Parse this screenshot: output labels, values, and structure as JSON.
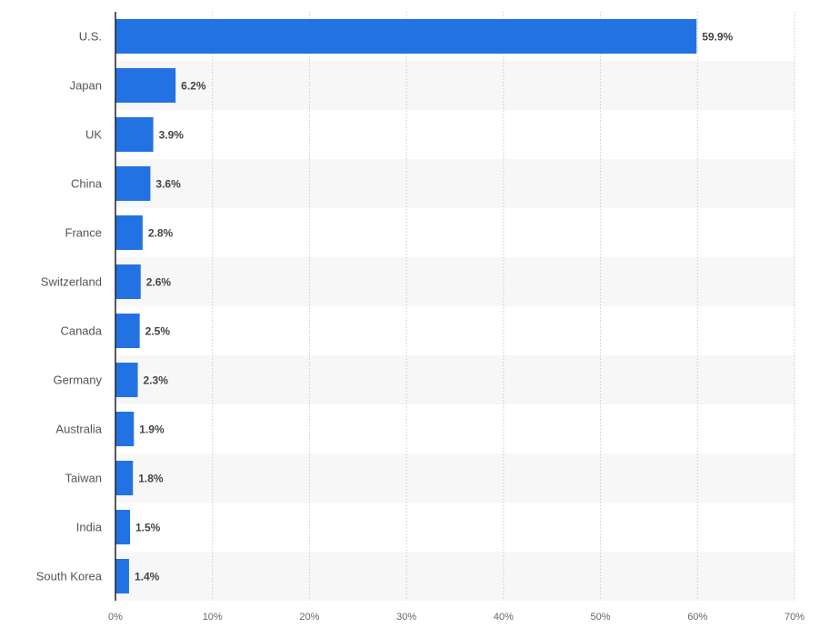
{
  "chart_data": {
    "type": "bar",
    "orientation": "horizontal",
    "categories": [
      "U.S.",
      "Japan",
      "UK",
      "China",
      "France",
      "Switzerland",
      "Canada",
      "Germany",
      "Australia",
      "Taiwan",
      "India",
      "South Korea"
    ],
    "values": [
      59.9,
      6.2,
      3.9,
      3.6,
      2.8,
      2.6,
      2.5,
      2.3,
      1.9,
      1.8,
      1.5,
      1.4
    ],
    "value_labels": [
      "59.9%",
      "6.2%",
      "3.9%",
      "3.6%",
      "2.8%",
      "2.6%",
      "2.5%",
      "2.3%",
      "1.9%",
      "1.8%",
      "1.5%",
      "1.4%"
    ],
    "x_ticks": [
      0,
      10,
      20,
      30,
      40,
      50,
      60,
      70
    ],
    "x_tick_labels": [
      "0%",
      "10%",
      "20%",
      "30%",
      "40%",
      "50%",
      "60%",
      "70%"
    ],
    "xlim": [
      0,
      70
    ],
    "title": "",
    "xlabel": "",
    "ylabel": "",
    "grid": true,
    "legend": "none",
    "colors": {
      "bar": "#2372e3",
      "stripe": "#f7f7f7",
      "grid": "#cccccc",
      "axis": "#222222"
    }
  }
}
